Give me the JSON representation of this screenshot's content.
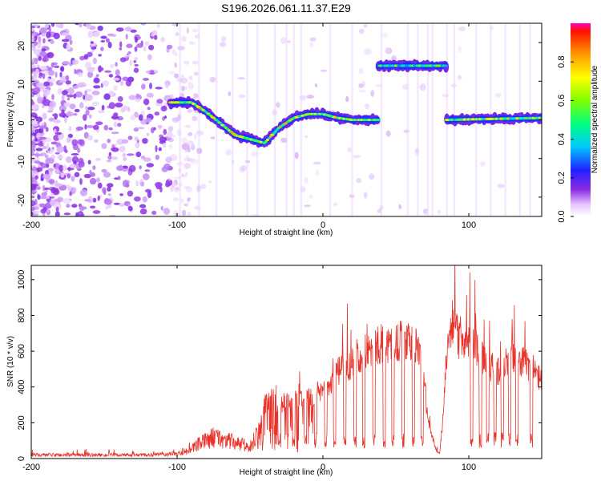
{
  "chart_data": [
    {
      "type": "heatmap",
      "title": "S196.2026.061.11.37.E29",
      "xlabel": "Height of straight line (km)",
      "ylabel": "Frequency (Hz)",
      "xlim": [
        -200,
        150
      ],
      "ylim": [
        -25,
        25
      ],
      "x_ticks": [
        -200,
        -100,
        0,
        100
      ],
      "y_ticks": [
        20,
        10,
        0,
        -10,
        -20
      ],
      "colorbar": {
        "label": "Normalized spectral amplitude",
        "range": [
          0,
          1
        ],
        "ticks": [
          "0.0",
          "0.2",
          "0.4",
          "0.6",
          "0.8"
        ]
      },
      "features": [
        {
          "name": "descending tone",
          "x": [
            -105,
            -90,
            -80,
            -70,
            -60,
            -50,
            -40,
            -30,
            -20,
            -10,
            0,
            10,
            20,
            38
          ],
          "y": [
            4.5,
            4.5,
            2,
            -1,
            -4,
            -5,
            -6,
            -2,
            0.5,
            1.5,
            1.5,
            0.5,
            0,
            0
          ],
          "amplitude": 0.8
        },
        {
          "name": "upper band",
          "x": [
            38,
            85
          ],
          "y": [
            14,
            14
          ],
          "amplitude": 0.6
        },
        {
          "name": "lower band",
          "x": [
            85,
            150
          ],
          "y": [
            0,
            0.5
          ],
          "amplitude": 0.75
        }
      ]
    },
    {
      "type": "line",
      "title": "",
      "xlabel": "Height of straight line (km)",
      "ylabel": "SNR (10 * v/v)",
      "xlim": [
        -200,
        150
      ],
      "ylim": [
        0,
        1080
      ],
      "x_ticks": [
        -200,
        -100,
        0,
        100
      ],
      "y_ticks": [
        0,
        200,
        400,
        600,
        800,
        1000
      ],
      "color": "#e8322a",
      "envelope": {
        "x": [
          -200,
          -120,
          -100,
          -90,
          -85,
          -75,
          -65,
          -50,
          -45,
          -42,
          -40,
          -35,
          -30,
          -25,
          -20,
          -15,
          -10,
          -5,
          0,
          5,
          10,
          15,
          20,
          30,
          40,
          50,
          55,
          60,
          65,
          70,
          72,
          75,
          78,
          80,
          82,
          85,
          88,
          90,
          93,
          95,
          100,
          105,
          110,
          115,
          120,
          125,
          130,
          135,
          140,
          145,
          150
        ],
        "y": [
          20,
          20,
          25,
          50,
          80,
          120,
          100,
          60,
          150,
          250,
          300,
          350,
          300,
          320,
          340,
          330,
          340,
          360,
          380,
          420,
          480,
          510,
          540,
          600,
          640,
          650,
          660,
          640,
          620,
          400,
          200,
          120,
          40,
          30,
          200,
          600,
          750,
          800,
          650,
          700,
          650,
          620,
          560,
          520,
          480,
          520,
          580,
          560,
          520,
          480,
          440
        ]
      },
      "dropouts": [
        -30,
        -20,
        -12,
        -5,
        2,
        8,
        15,
        22,
        28,
        35,
        42,
        48,
        55,
        62,
        68,
        102,
        108,
        113,
        118,
        123,
        128,
        133,
        143
      ],
      "dropout_level": 150
    }
  ]
}
